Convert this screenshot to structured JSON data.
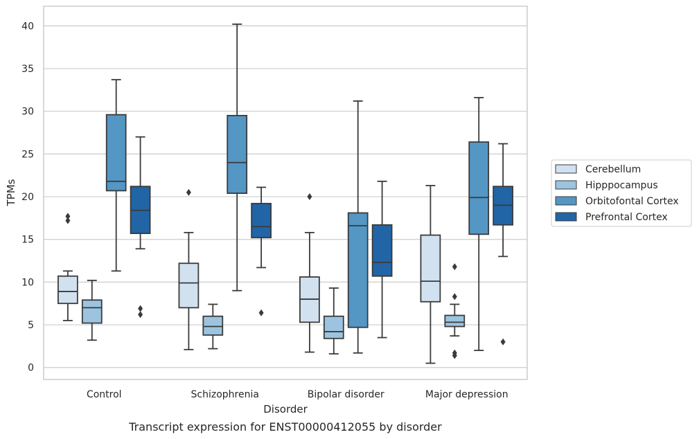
{
  "chart_data": {
    "type": "box",
    "caption": "Transcript expression for ENST00000412055 by disorder",
    "xlabel": "Disorder",
    "ylabel": "TPMs",
    "ylim": [
      -1.4,
      42.3
    ],
    "yticks": [
      0,
      5,
      10,
      15,
      20,
      25,
      30,
      35,
      40
    ],
    "grid": true,
    "legend_position": "right",
    "categories": [
      "Control",
      "Schizophrenia",
      "Bipolar disorder",
      "Major depression"
    ],
    "series": [
      {
        "name": "Cerebellum",
        "color": "#d2e1f0",
        "boxes": [
          {
            "whislo": 5.5,
            "q1": 7.5,
            "med": 8.9,
            "q3": 10.7,
            "whishi": 11.3,
            "fliers": [
              17.2,
              17.7
            ]
          },
          {
            "whislo": 2.1,
            "q1": 7.0,
            "med": 9.9,
            "q3": 12.2,
            "whishi": 15.8,
            "fliers": [
              20.5
            ]
          },
          {
            "whislo": 1.8,
            "q1": 5.3,
            "med": 8.0,
            "q3": 10.6,
            "whishi": 15.8,
            "fliers": [
              20.0
            ]
          },
          {
            "whislo": 0.5,
            "q1": 7.7,
            "med": 10.1,
            "q3": 15.5,
            "whishi": 21.3,
            "fliers": []
          }
        ]
      },
      {
        "name": "Hipppocampus",
        "color": "#9cc4e0",
        "boxes": [
          {
            "whislo": 3.2,
            "q1": 5.2,
            "med": 7.0,
            "q3": 7.9,
            "whishi": 10.2,
            "fliers": []
          },
          {
            "whislo": 2.2,
            "q1": 3.8,
            "med": 4.8,
            "q3": 6.0,
            "whishi": 7.4,
            "fliers": []
          },
          {
            "whislo": 1.6,
            "q1": 3.4,
            "med": 4.2,
            "q3": 6.0,
            "whishi": 9.3,
            "fliers": []
          },
          {
            "whislo": 3.7,
            "q1": 4.8,
            "med": 5.3,
            "q3": 6.1,
            "whishi": 7.4,
            "fliers": [
              1.4,
              1.7,
              8.3,
              11.8
            ]
          }
        ]
      },
      {
        "name": "Orbitofontal Cortex",
        "color": "#5496c4",
        "boxes": [
          {
            "whislo": 11.3,
            "q1": 20.7,
            "med": 21.8,
            "q3": 29.6,
            "whishi": 33.7,
            "fliers": []
          },
          {
            "whislo": 9.0,
            "q1": 20.4,
            "med": 24.0,
            "q3": 29.5,
            "whishi": 40.2,
            "fliers": []
          },
          {
            "whislo": 1.7,
            "q1": 4.7,
            "med": 16.6,
            "q3": 18.1,
            "whishi": 31.2,
            "fliers": []
          },
          {
            "whislo": 2.0,
            "q1": 15.6,
            "med": 19.9,
            "q3": 26.4,
            "whishi": 31.6,
            "fliers": []
          }
        ]
      },
      {
        "name": "Prefrontal Cortex",
        "color": "#2165a6",
        "boxes": [
          {
            "whislo": 13.9,
            "q1": 15.7,
            "med": 18.4,
            "q3": 21.2,
            "whishi": 27.0,
            "fliers": [
              6.2,
              6.9
            ]
          },
          {
            "whislo": 11.7,
            "q1": 15.2,
            "med": 16.5,
            "q3": 19.2,
            "whishi": 21.1,
            "fliers": [
              6.4
            ]
          },
          {
            "whislo": 3.5,
            "q1": 10.7,
            "med": 12.3,
            "q3": 16.7,
            "whishi": 21.8,
            "fliers": []
          },
          {
            "whislo": 13.0,
            "q1": 16.7,
            "med": 19.0,
            "q3": 21.2,
            "whishi": 26.2,
            "fliers": [
              3.0
            ]
          }
        ]
      }
    ]
  }
}
